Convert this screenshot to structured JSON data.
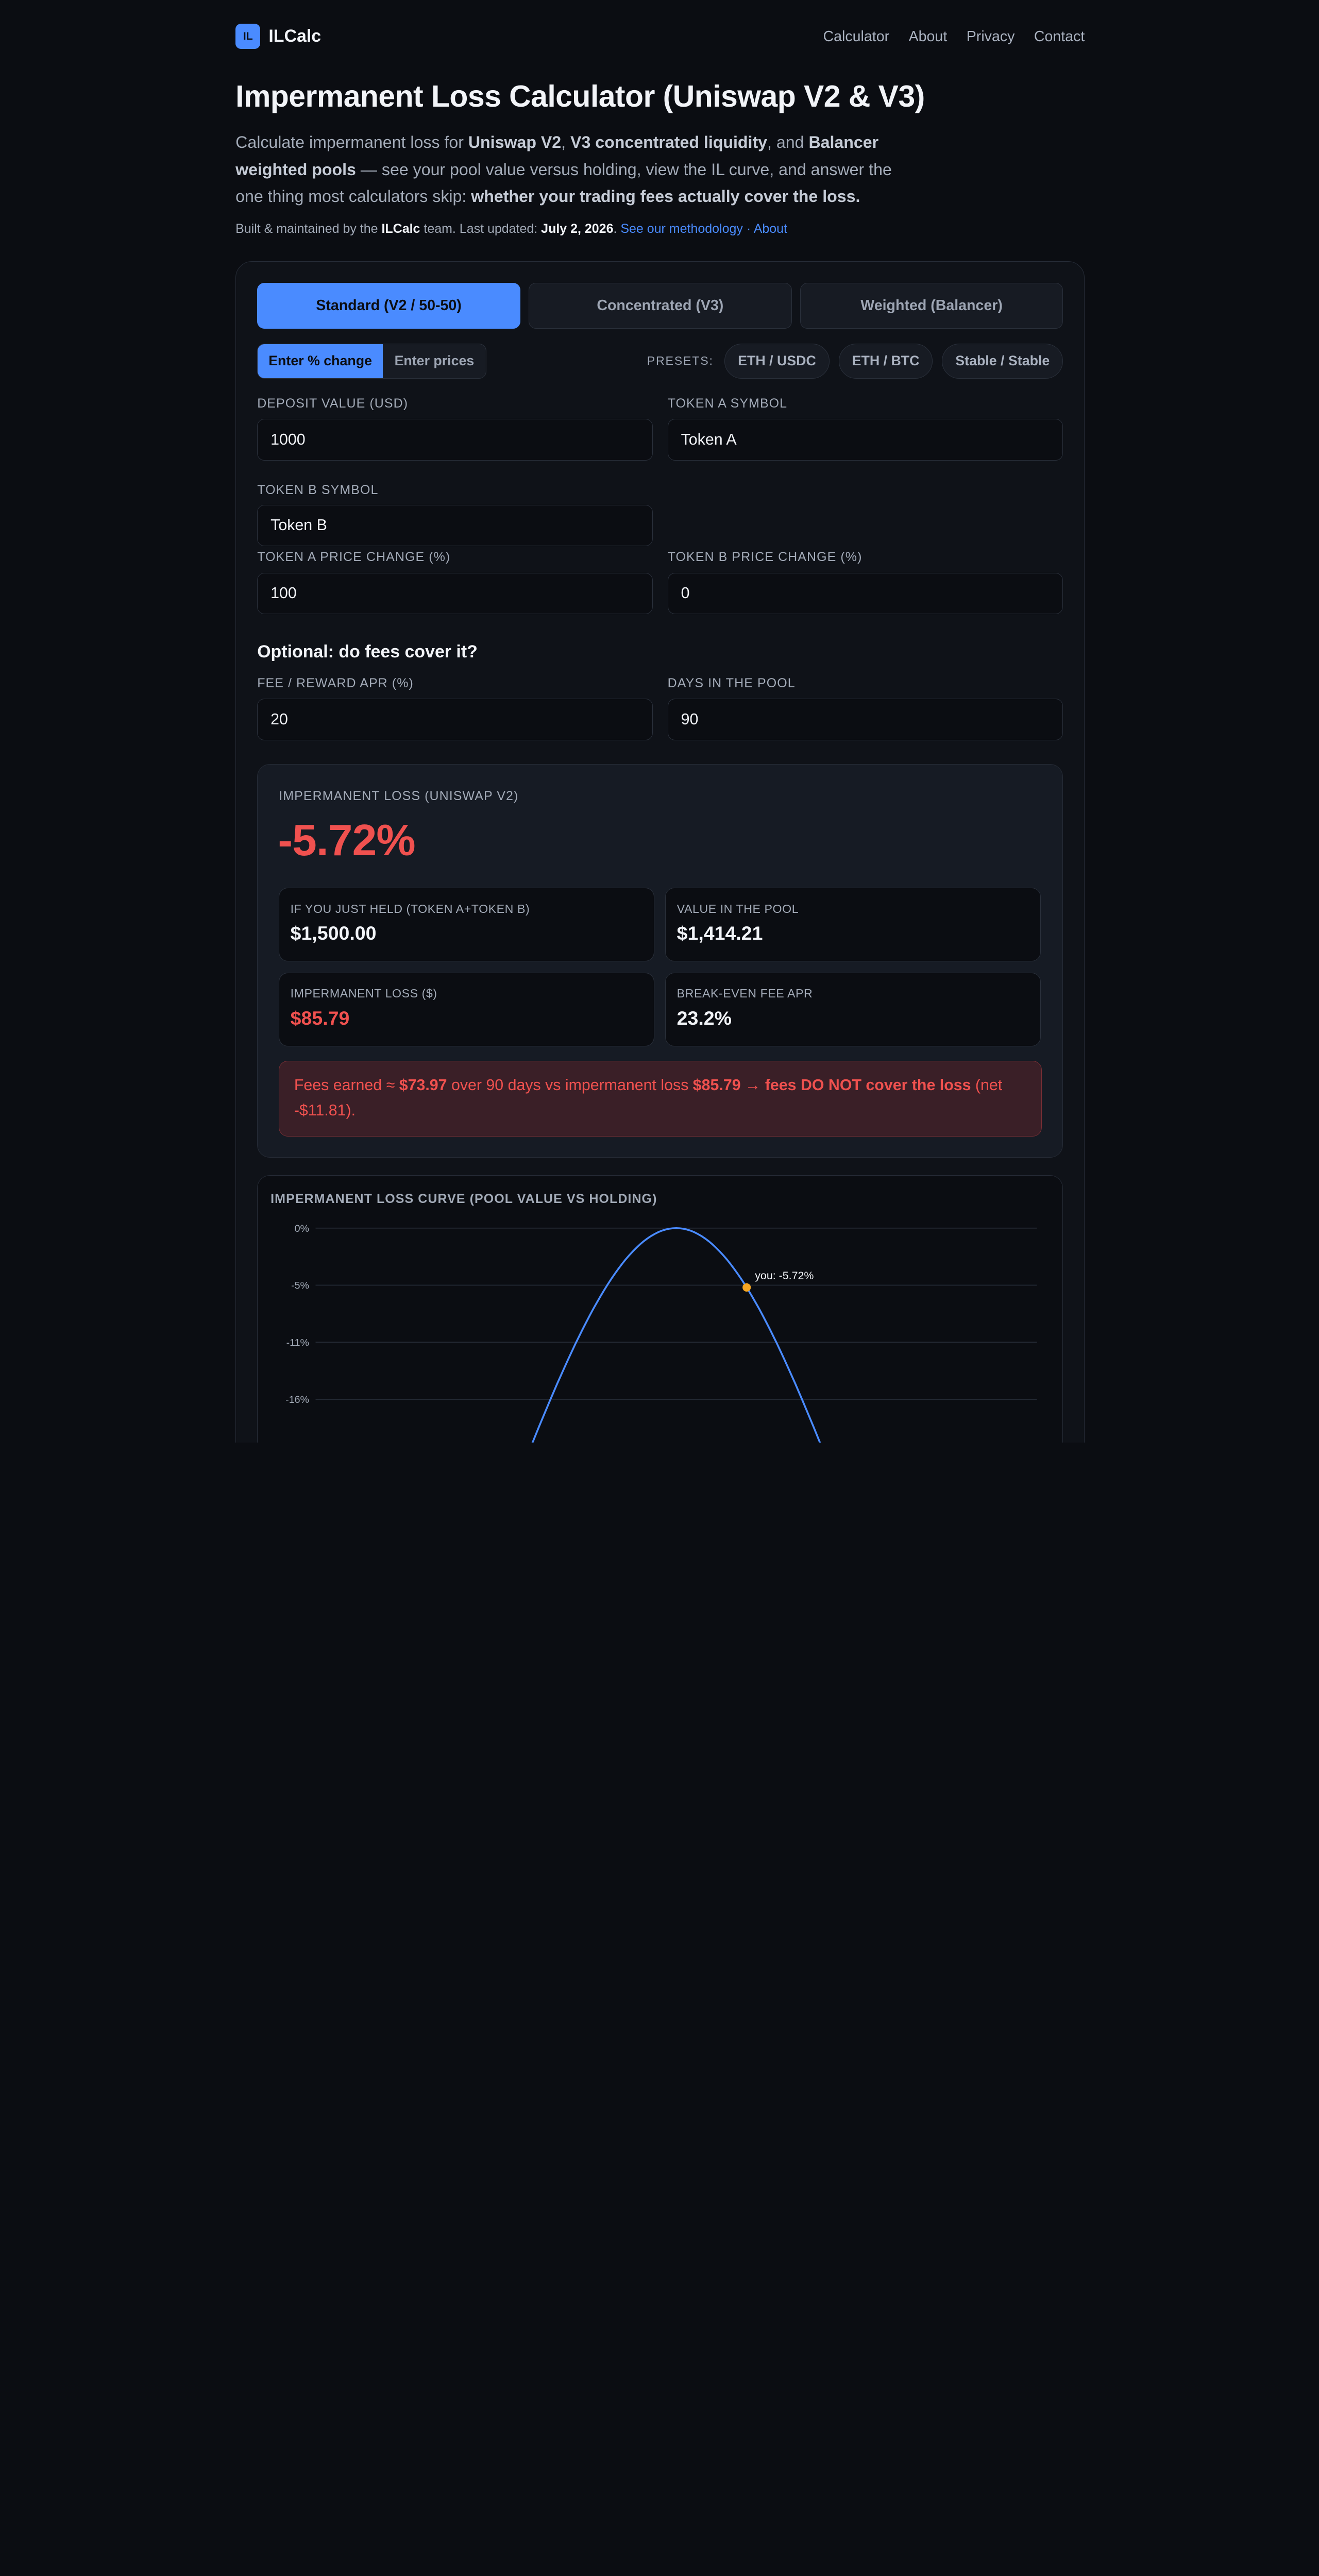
{
  "nav": {
    "logo_badge": "IL",
    "logo_text": "ILCalc",
    "links": [
      "Calculator",
      "About",
      "Privacy",
      "Contact"
    ]
  },
  "header": {
    "title": "Impermanent Loss Calculator (Uniswap V2 & V3)",
    "intro": {
      "p1": "Calculate impermanent loss for ",
      "b1": "Uniswap V2",
      "p2": ", ",
      "b2": "V3 concentrated liquidity",
      "p3": ", and ",
      "b3": "Balancer weighted pools",
      "p4": " — see your pool value versus holding, view the IL curve, and answer the one thing most calculators skip: ",
      "b4": "whether your trading fees actually cover the loss."
    },
    "meta": {
      "p1": "Built & maintained by the ",
      "team": "ILCalc",
      "p2": " team. Last updated: ",
      "date": "July 2, 2026",
      "p3": ". ",
      "methodology": "See our methodology",
      "sep": " · ",
      "about": "About"
    }
  },
  "tabs": [
    "Standard (V2 / 50-50)",
    "Concentrated (V3)",
    "Weighted (Balancer)"
  ],
  "mode": {
    "percent": "Enter % change",
    "prices": "Enter prices"
  },
  "presets": {
    "label": "PRESETS:",
    "items": [
      "ETH / USDC",
      "ETH / BTC",
      "Stable / Stable"
    ]
  },
  "fields": {
    "deposit": {
      "label": "DEPOSIT VALUE (USD)",
      "value": "1000"
    },
    "token_a_symbol": {
      "label": "TOKEN A SYMBOL",
      "value": "Token A"
    },
    "token_b_symbol": {
      "label": "TOKEN B SYMBOL",
      "value": "Token B"
    },
    "token_a_change": {
      "label": "TOKEN A PRICE CHANGE (%)",
      "value": "100"
    },
    "token_b_change": {
      "label": "TOKEN B PRICE CHANGE (%)",
      "value": "0"
    },
    "fee_apr": {
      "label": "FEE / REWARD APR (%)",
      "value": "20"
    },
    "days": {
      "label": "DAYS IN THE POOL",
      "value": "90"
    }
  },
  "optional_heading": "Optional: do fees cover it?",
  "result": {
    "label": "IMPERMANENT LOSS (UNISWAP V2)",
    "value": "-5.72%",
    "held": {
      "label": "IF YOU JUST HELD (TOKEN A+TOKEN B)",
      "value": "$1,500.00"
    },
    "pool": {
      "label": "VALUE IN THE POOL",
      "value": "$1,414.21"
    },
    "il_usd": {
      "label": "IMPERMANENT LOSS ($)",
      "value": "$85.79"
    },
    "breakeven": {
      "label": "BREAK-EVEN FEE APR",
      "value": "23.2%"
    },
    "alert": {
      "p1": "Fees earned ≈ ",
      "fees": "$73.97",
      "p2": " over 90 days vs impermanent loss ",
      "loss": "$85.79",
      "p3": " → ",
      "verdict": "fees DO NOT cover the loss",
      "p4": " (net -$11.81)."
    }
  },
  "colors": {
    "accent": "#4a8bff",
    "loss": "#f0514f",
    "marker": "#f5a623",
    "background": "#0b0d12"
  },
  "chart_data": {
    "type": "line",
    "title": "IMPERMANENT LOSS CURVE (POOL VALUE VS HOLDING)",
    "y_ticks": [
      "0%",
      "-5%",
      "-11%",
      "-16%"
    ],
    "curve": "impermanent loss vs price ratio (log scale), peak 0% at ratio 1",
    "marker": {
      "label": "you: -5.72%",
      "y": -5.72
    }
  }
}
